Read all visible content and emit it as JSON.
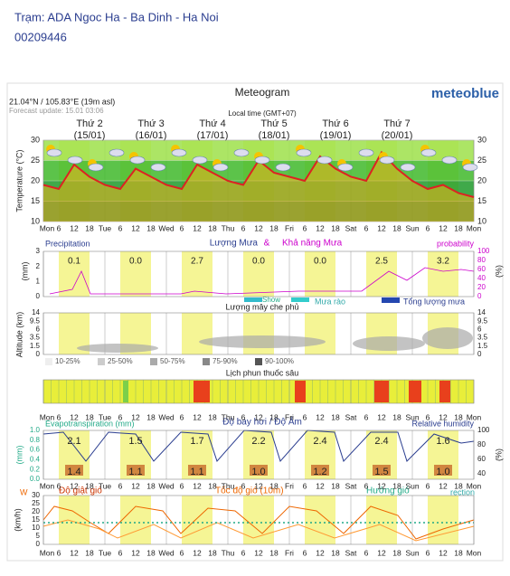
{
  "header": {
    "station": "Trạm: ADA Ngoc Ha - Ba Dinh - Ha Noi",
    "id": "00209446"
  },
  "meteogram": {
    "title": "Meteogram",
    "brand": "meteoblue",
    "location": "21.04°N / 105.83°E (19m asl)",
    "update": "Forecast update: 15.01 03:06",
    "local_time": "Local time (GMT+07)",
    "days": [
      {
        "name": "Thứ 2",
        "date": "(15/01)"
      },
      {
        "name": "Thứ 3",
        "date": "(16/01)"
      },
      {
        "name": "Thứ 4",
        "date": "(17/01)"
      },
      {
        "name": "Thứ 5",
        "date": "(18/01)"
      },
      {
        "name": "Thứ 6",
        "date": "(19/01)"
      },
      {
        "name": "Thứ 7",
        "date": "(20/01)"
      }
    ],
    "time_labels": [
      "Mon",
      "6",
      "12",
      "18",
      "Tue",
      "6",
      "12",
      "18",
      "Wed",
      "6",
      "12",
      "18",
      "Thu",
      "6",
      "12",
      "18",
      "Fri",
      "6",
      "12",
      "18",
      "Sat",
      "6",
      "12",
      "18",
      "Sun",
      "6",
      "12",
      "18",
      "Mon"
    ],
    "temperature": {
      "axis_label": "Temperature (°C)",
      "ylim": [
        10,
        30
      ],
      "ticks": [
        10,
        15,
        20,
        25,
        30
      ],
      "values": [
        19,
        18,
        24,
        21,
        19,
        18,
        23,
        21,
        19,
        18,
        24,
        22,
        20,
        19,
        25,
        22,
        21,
        20,
        26,
        23,
        21,
        20,
        27,
        23,
        20,
        18,
        19,
        17,
        16
      ]
    },
    "precipitation": {
      "label": "Precipitation",
      "title_left": "Lượng Mưa",
      "amp": "&",
      "title_right": "Khả năng Mưa",
      "right_label": "probability",
      "unit_left": "(mm)",
      "unit_right": "(%)",
      "ticks_left": [
        3,
        2,
        1,
        0
      ],
      "ticks_right": [
        100,
        80,
        60,
        40,
        20,
        0
      ],
      "daily": [
        "0.1",
        "0.0",
        "2.7",
        "0.0",
        "0.0",
        "2.5",
        "3.2"
      ],
      "legend": [
        "Show",
        "Mưa rào",
        "Tổng lượng mưa"
      ]
    },
    "cloud": {
      "title": "Lượng mây che phủ",
      "axis_label": "Altitude (km)",
      "ticks": [
        "14",
        "9.5",
        "6",
        "3.5",
        "1.5",
        "0"
      ],
      "legend": [
        "10-25%",
        "25-50%",
        "50-75%",
        "75-90%",
        "90-100%"
      ]
    },
    "spray": {
      "title": "Lịch phun thuốc sâu"
    },
    "evap": {
      "left_label": "Evapotranspiration (mm)",
      "title": "Độ bay hơi / Độ Ẩm",
      "right_label": "Relative humidity",
      "unit_left": "(mm)",
      "unit_right": "(%)",
      "ticks_left": [
        "1.0",
        "0.8",
        "0.6",
        "0.4",
        "0.2",
        "0.0"
      ],
      "ticks_right": [
        "100",
        "80",
        "60",
        "40"
      ],
      "daily_top": [
        "2.1",
        "1.5",
        "1.7",
        "2.2",
        "2.4",
        "2.4",
        "1.6"
      ],
      "daily_bottom": [
        "1.4",
        "1.1",
        "1.1",
        "1.0",
        "1.2",
        "1.5",
        "1.0"
      ]
    },
    "wind": {
      "w": "W",
      "gust": "Độ giật gió",
      "speed": "Tốc độ gió (10m)",
      "dir": "Hướng gió",
      "dir2": "rection",
      "unit": "(km/h)",
      "ticks": [
        30,
        25,
        20,
        15,
        10,
        5,
        0
      ]
    }
  }
}
